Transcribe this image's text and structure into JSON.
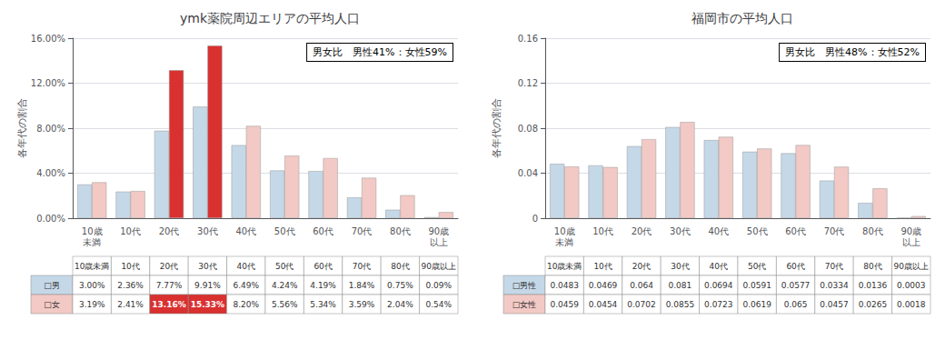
{
  "chart_data": [
    {
      "type": "bar",
      "title": "ymk薬院周辺エリアの平均人口",
      "ylabel": "各年代の割合",
      "categories": [
        "10歳\n未満",
        "10代",
        "20代",
        "30代",
        "40代",
        "50代",
        "60代",
        "70代",
        "80代",
        "90歳\n以上"
      ],
      "series": [
        {
          "name": "□男",
          "color": "#c5d8e8",
          "values": [
            0.03,
            0.0236,
            0.0777,
            0.0991,
            0.0649,
            0.0424,
            0.0419,
            0.0184,
            0.0075,
            0.0009
          ],
          "value_labels": [
            "3.00%",
            "2.36%",
            "7.77%",
            "9.91%",
            "6.49%",
            "4.24%",
            "4.19%",
            "1.84%",
            "0.75%",
            "0.09%"
          ]
        },
        {
          "name": "□女",
          "color": "#f2c9c5",
          "colors": [
            "#f2c9c5",
            "#f2c9c5",
            "#d93030",
            "#d93030",
            "#f2c9c5",
            "#f2c9c5",
            "#f2c9c5",
            "#f2c9c5",
            "#f2c9c5",
            "#f2c9c5"
          ],
          "values": [
            0.0319,
            0.0241,
            0.1316,
            0.1533,
            0.082,
            0.0556,
            0.0534,
            0.0359,
            0.0204,
            0.0054
          ],
          "value_labels": [
            "3.19%",
            "2.41%",
            "13.16%",
            "15.33%",
            "8.20%",
            "5.56%",
            "5.34%",
            "3.59%",
            "2.04%",
            "0.54%"
          ]
        }
      ],
      "ylim": [
        0,
        0.16
      ],
      "yticks": [
        {
          "value": 0.0,
          "label": "0.00%"
        },
        {
          "value": 0.04,
          "label": "4.00%"
        },
        {
          "value": 0.08,
          "label": "8.00%"
        },
        {
          "value": 0.12,
          "label": "12.00%"
        },
        {
          "value": 0.16,
          "label": "16.00%"
        }
      ],
      "grid": true,
      "annotation": "男女比　男性41%：女性59%"
    },
    {
      "type": "bar",
      "title": "福岡市の平均人口",
      "ylabel": "各年代の割合",
      "categories": [
        "10歳\n未満",
        "10代",
        "20代",
        "30代",
        "40代",
        "50代",
        "60代",
        "70代",
        "80代",
        "90歳\n以上"
      ],
      "series": [
        {
          "name": "□男性",
          "color": "#c5d8e8",
          "values": [
            0.0483,
            0.0469,
            0.064,
            0.081,
            0.0694,
            0.0591,
            0.0577,
            0.0334,
            0.0136,
            0.0003
          ],
          "value_labels": [
            "0.0483",
            "0.0469",
            "0.064",
            "0.081",
            "0.0694",
            "0.0591",
            "0.0577",
            "0.0334",
            "0.0136",
            "0.0003"
          ]
        },
        {
          "name": "□女性",
          "color": "#f2c9c5",
          "values": [
            0.0459,
            0.0454,
            0.0702,
            0.0855,
            0.0723,
            0.0619,
            0.065,
            0.0457,
            0.0265,
            0.0018
          ],
          "value_labels": [
            "0.0459",
            "0.0454",
            "0.0702",
            "0.0855",
            "0.0723",
            "0.0619",
            "0.065",
            "0.0457",
            "0.0265",
            "0.0018"
          ]
        }
      ],
      "ylim": [
        0,
        0.16
      ],
      "yticks": [
        0,
        0.04,
        0.08,
        0.12,
        0.16
      ],
      "grid": true,
      "annotation": "男女比　男性48%：女性52%"
    }
  ]
}
